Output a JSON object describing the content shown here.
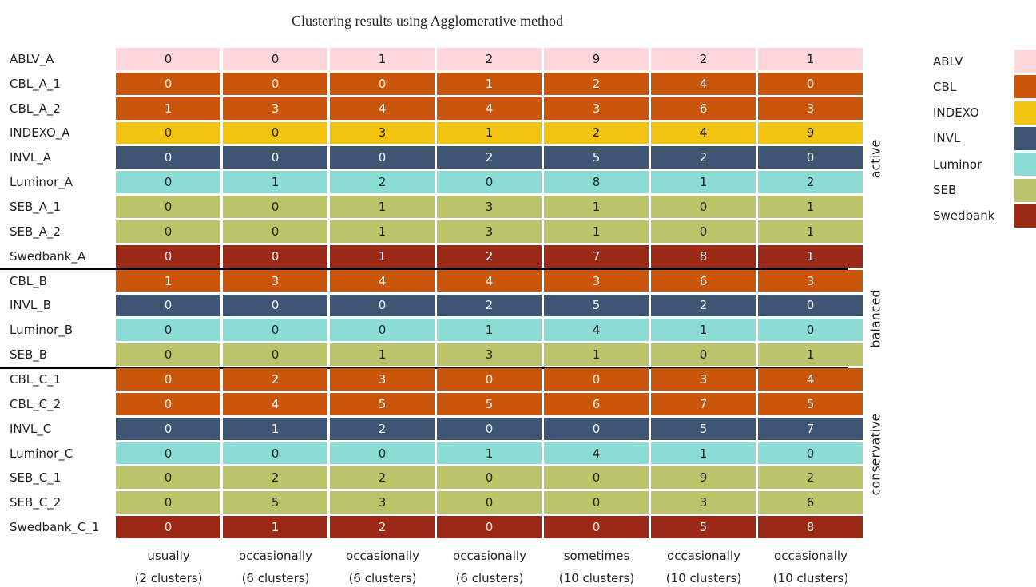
{
  "title": "Clustering results using Agglomerative method",
  "columns": [
    {
      "line1": "usually",
      "line2": "(2 clusters)"
    },
    {
      "line1": "occasionally",
      "line2": "(6 clusters)"
    },
    {
      "line1": "occasionally",
      "line2": "(6 clusters)"
    },
    {
      "line1": "occasionally",
      "line2": "(6 clusters)"
    },
    {
      "line1": "sometimes",
      "line2": "(10 clusters)"
    },
    {
      "line1": "occasionally",
      "line2": "(10 clusters)"
    },
    {
      "line1": "occasionally",
      "line2": "(10 clusters)"
    }
  ],
  "groups": [
    {
      "name": "active",
      "rows": [
        {
          "label": "ABLV_A",
          "values": [
            0,
            0,
            1,
            2,
            9,
            2,
            1
          ]
        },
        {
          "label": "CBL_A_1",
          "values": [
            0,
            0,
            0,
            1,
            2,
            4,
            0
          ]
        },
        {
          "label": "CBL_A_2",
          "values": [
            1,
            3,
            4,
            4,
            3,
            6,
            3
          ]
        },
        {
          "label": "INDEXO_A",
          "values": [
            0,
            0,
            3,
            1,
            2,
            4,
            9
          ]
        },
        {
          "label": "INVL_A",
          "values": [
            0,
            0,
            0,
            2,
            5,
            2,
            0
          ]
        },
        {
          "label": "Luminor_A",
          "values": [
            0,
            1,
            2,
            0,
            8,
            1,
            2
          ]
        },
        {
          "label": "SEB_A_1",
          "values": [
            0,
            0,
            1,
            3,
            1,
            0,
            1
          ]
        },
        {
          "label": "SEB_A_2",
          "values": [
            0,
            0,
            1,
            3,
            1,
            0,
            1
          ]
        },
        {
          "label": "Swedbank_A",
          "values": [
            0,
            0,
            1,
            2,
            7,
            8,
            1
          ]
        }
      ]
    },
    {
      "name": "balanced",
      "rows": [
        {
          "label": "CBL_B",
          "values": [
            1,
            3,
            4,
            4,
            3,
            6,
            3
          ]
        },
        {
          "label": "INVL_B",
          "values": [
            0,
            0,
            0,
            2,
            5,
            2,
            0
          ]
        },
        {
          "label": "Luminor_B",
          "values": [
            0,
            0,
            0,
            1,
            4,
            1,
            0
          ]
        },
        {
          "label": "SEB_B",
          "values": [
            0,
            0,
            1,
            3,
            1,
            0,
            1
          ]
        }
      ]
    },
    {
      "name": "conservative",
      "rows": [
        {
          "label": "CBL_C_1",
          "values": [
            0,
            2,
            3,
            0,
            0,
            3,
            4
          ]
        },
        {
          "label": "CBL_C_2",
          "values": [
            0,
            4,
            5,
            5,
            6,
            7,
            5
          ]
        },
        {
          "label": "INVL_C",
          "values": [
            0,
            1,
            2,
            0,
            0,
            5,
            7
          ]
        },
        {
          "label": "Luminor_C",
          "values": [
            0,
            0,
            0,
            1,
            4,
            1,
            0
          ]
        },
        {
          "label": "SEB_C_1",
          "values": [
            0,
            2,
            2,
            0,
            0,
            9,
            2
          ]
        },
        {
          "label": "SEB_C_2",
          "values": [
            0,
            5,
            3,
            0,
            0,
            3,
            6
          ]
        },
        {
          "label": "Swedbank_C_1",
          "values": [
            0,
            1,
            2,
            0,
            0,
            5,
            8
          ]
        }
      ]
    }
  ],
  "legend": [
    {
      "name": "ABLV",
      "color": "#fdd7db"
    },
    {
      "name": "CBL",
      "color": "#c9560a"
    },
    {
      "name": "INDEXO",
      "color": "#f2c30f"
    },
    {
      "name": "INVL",
      "color": "#3e5673"
    },
    {
      "name": "Luminor",
      "color": "#8bdcd5"
    },
    {
      "name": "SEB",
      "color": "#bcc46a"
    },
    {
      "name": "Swedbank",
      "color": "#9b2916"
    }
  ]
}
